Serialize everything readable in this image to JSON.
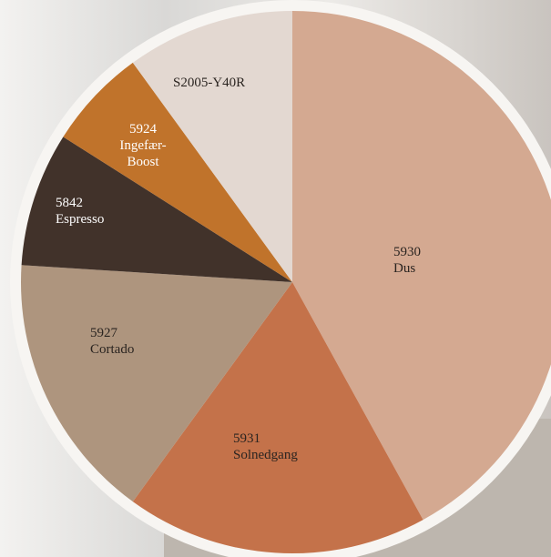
{
  "chart_data": {
    "type": "pie",
    "codes": [
      "5930",
      "5931",
      "5927",
      "5842",
      "5924",
      "S2005-Y40R"
    ],
    "names": [
      "Dus",
      "Solnedgang",
      "Cortado",
      "Espresso",
      "Ingefær-Boost",
      null
    ],
    "values": [
      42,
      18,
      16,
      8,
      6,
      10
    ],
    "colors": [
      "#d4a991",
      "#c4724a",
      "#ae957e",
      "#41322a",
      "#c0732b",
      "#e3d8d1"
    ],
    "label_colors": [
      "#2a2420",
      "#2a2420",
      "#2a2420",
      "#ffffff",
      "#ffffff",
      "#2a2420"
    ]
  }
}
